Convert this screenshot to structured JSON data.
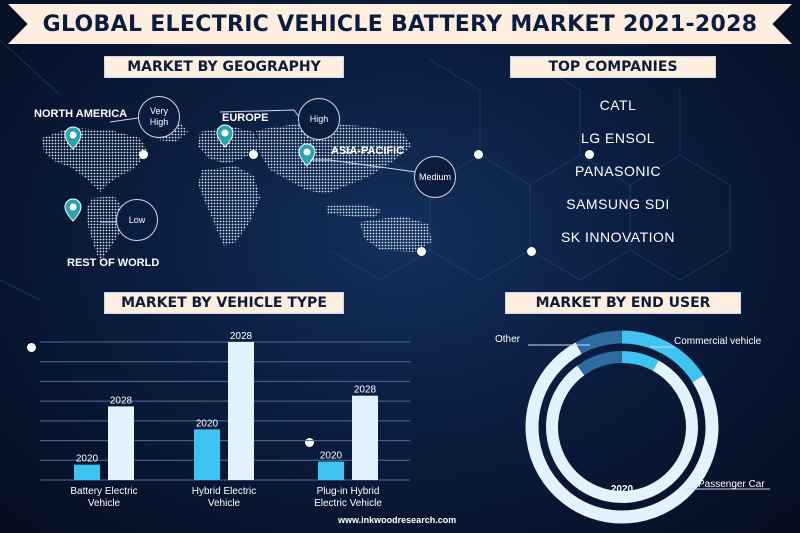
{
  "title": "GLOBAL ELECTRIC VEHICLE BATTERY MARKET 2021-2028",
  "sections": {
    "geography": "MARKET BY GEOGRAPHY",
    "companies": "TOP COMPANIES",
    "vehicle": "MARKET BY VEHICLE TYPE",
    "end_user": "MARKET BY END USER"
  },
  "regions": [
    {
      "name": "NORTH AMERICA",
      "level": "Very High"
    },
    {
      "name": "EUROPE",
      "level": "High"
    },
    {
      "name": "ASIA-PACIFIC",
      "level": "Medium"
    },
    {
      "name": "REST OF WORLD",
      "level": "Low"
    }
  ],
  "companies": [
    "CATL",
    "LG ENSOL",
    "PANASONIC",
    "SAMSUNG SDI",
    "SK INNOVATION"
  ],
  "footer": "www.inkwoodresearch.com",
  "colors": {
    "accent": "#3fc4f2",
    "light_bar": "#e2f3fd",
    "banner": "#fdeee0",
    "background": "#0b1d3f",
    "pin": "#2aa3b5"
  },
  "chart_data": [
    {
      "type": "bar",
      "categories": [
        "Battery Electric Vehicle",
        "Hybrid Electric Vehicle",
        "Plug-in Hybrid Electric Vehicle"
      ],
      "series": [
        {
          "name": "2020",
          "values": [
            1.0,
            3.3,
            1.2
          ]
        },
        {
          "name": "2028",
          "values": [
            4.8,
            9.0,
            5.5
          ]
        }
      ],
      "ylim": [
        0,
        9.0
      ],
      "grid": true
    },
    {
      "type": "pie",
      "categories": [
        "Commercial vehicle",
        "Passenger Car",
        "Other"
      ],
      "series": [
        {
          "name": "2020",
          "values": [
            0.08,
            0.82,
            0.1
          ]
        },
        {
          "name": "2028",
          "values": [
            0.16,
            0.76,
            0.08
          ]
        }
      ]
    }
  ]
}
